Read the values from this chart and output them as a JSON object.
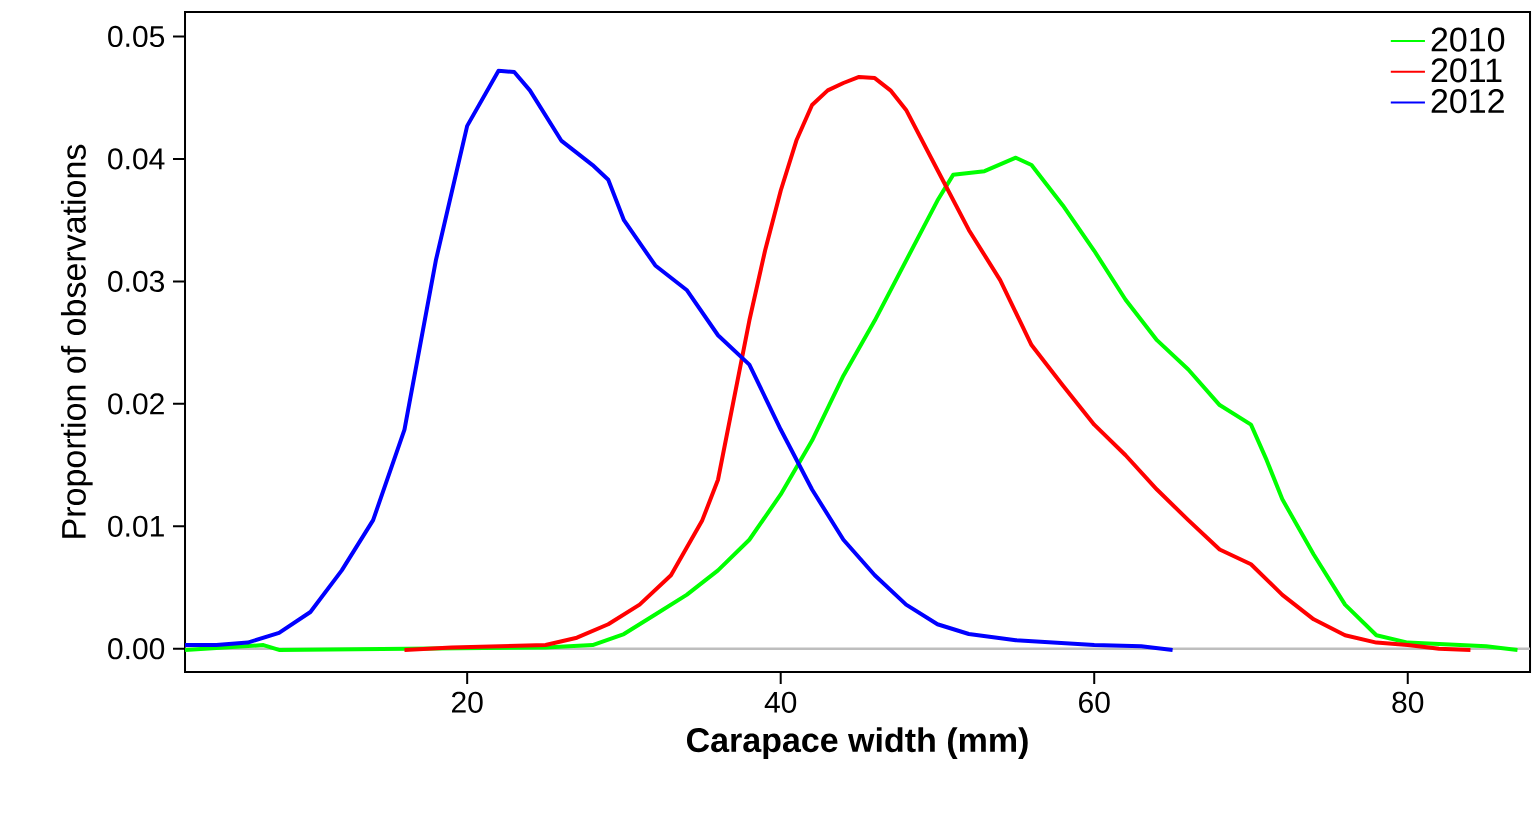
{
  "chart_data": {
    "type": "line",
    "xlabel": "Carapace width (mm)",
    "ylabel": "Proportion of observations",
    "xlim": [
      2,
      87.8
    ],
    "ylim": [
      -0.0019,
      0.052
    ],
    "xticks": [
      20,
      40,
      60,
      80
    ],
    "yticks": [
      {
        "value": 0,
        "label": "0.00"
      },
      {
        "value": 0.01,
        "label": "0.01"
      },
      {
        "value": 0.02,
        "label": "0.02"
      },
      {
        "value": 0.03,
        "label": "0.03"
      },
      {
        "value": 0.04,
        "label": "0.04"
      },
      {
        "value": 0.05,
        "label": "0.05"
      }
    ],
    "legend": "top right",
    "grid": false,
    "marker": "none",
    "line_style": "solid",
    "ref_lines": [
      {
        "axis": "y",
        "value": 0,
        "color": "#bebebe"
      }
    ],
    "series": [
      {
        "name": "2010",
        "color": "#00ff00",
        "x": [
          2,
          7,
          8,
          25,
          28,
          30,
          32,
          34,
          36,
          38,
          40,
          42,
          44,
          46,
          48,
          50,
          51,
          53,
          55,
          56,
          58,
          60,
          62,
          64,
          66,
          68,
          70,
          71,
          72,
          74,
          76,
          78,
          80,
          85,
          87
        ],
        "values": [
          -0.0001,
          0.0003,
          -0.0001,
          0.0001,
          0.0003,
          0.0012,
          0.0028,
          0.0044,
          0.0064,
          0.0089,
          0.0126,
          0.017,
          0.0223,
          0.0268,
          0.0317,
          0.0366,
          0.0387,
          0.039,
          0.0401,
          0.0395,
          0.0362,
          0.0325,
          0.0285,
          0.0252,
          0.0228,
          0.0199,
          0.0183,
          0.0154,
          0.0122,
          0.0077,
          0.0036,
          0.0011,
          0.0005,
          0.0002,
          -0.0001
        ]
      },
      {
        "name": "2011",
        "color": "#ff0000",
        "x": [
          16,
          19,
          25,
          27,
          29,
          31,
          33,
          35,
          36,
          37,
          38,
          39,
          40,
          41,
          42,
          43,
          44,
          45,
          46,
          47,
          48,
          50,
          52,
          54,
          56,
          58,
          60,
          62,
          64,
          66,
          68,
          70,
          72,
          74,
          76,
          78,
          80,
          82,
          84
        ],
        "values": [
          -0.0001,
          0.0001,
          0.0003,
          0.0009,
          0.002,
          0.0036,
          0.006,
          0.0105,
          0.0138,
          0.0203,
          0.0268,
          0.0325,
          0.0374,
          0.0415,
          0.0444,
          0.0456,
          0.0462,
          0.0467,
          0.0466,
          0.0456,
          0.044,
          0.0391,
          0.0342,
          0.0301,
          0.0248,
          0.0215,
          0.0183,
          0.0158,
          0.013,
          0.0105,
          0.0081,
          0.0069,
          0.0044,
          0.0024,
          0.0011,
          0.0005,
          0.0003,
          0,
          -0.0001
        ]
      },
      {
        "name": "2012",
        "color": "#0000ff",
        "x": [
          2,
          4,
          6,
          8,
          10,
          12,
          14,
          16,
          18,
          20,
          22,
          23,
          24,
          26,
          28,
          29,
          30,
          32,
          34,
          36,
          38,
          40,
          42,
          44,
          46,
          48,
          50,
          52,
          55,
          60,
          63,
          65
        ],
        "values": [
          0.0003,
          0.0003,
          0.0005,
          0.0013,
          0.003,
          0.0064,
          0.0105,
          0.0179,
          0.0317,
          0.0427,
          0.0472,
          0.0471,
          0.0456,
          0.0415,
          0.0395,
          0.0383,
          0.035,
          0.0313,
          0.0293,
          0.0256,
          0.0232,
          0.0179,
          0.013,
          0.0089,
          0.006,
          0.0036,
          0.002,
          0.0012,
          0.0007,
          0.0003,
          0.0002,
          -0.0001
        ]
      }
    ]
  }
}
